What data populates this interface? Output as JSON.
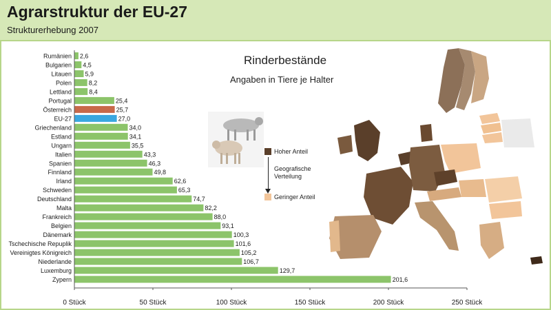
{
  "header": {
    "title": "Agrarstruktur der EU-27",
    "subtitle": "Strukturerhebung 2007"
  },
  "chart_data": {
    "type": "bar",
    "orientation": "horizontal",
    "title": "Rinderbestände",
    "subtitle": "Angaben in Tiere je Halter",
    "categories": [
      "Rumänien",
      "Bulgarien",
      "Litauen",
      "Polen",
      "Lettland",
      "Portugal",
      "Österreich",
      "EU-27",
      "Griechenland",
      "Estland",
      "Ungarn",
      "Italien",
      "Spanien",
      "Finnland",
      "Irland",
      "Schweden",
      "Deutschland",
      "Malta",
      "Frankreich",
      "Belgien",
      "Dänemark",
      "Tschechische Repuplik",
      "Vereinigtes Königreich",
      "Niederlande",
      "Luxemburg",
      "Zypern"
    ],
    "values": [
      2.6,
      4.5,
      5.9,
      8.2,
      8.4,
      25.4,
      25.7,
      27.0,
      34.0,
      34.1,
      35.5,
      43.3,
      46.3,
      49.8,
      62.6,
      65.3,
      74.7,
      82.2,
      88.0,
      93.1,
      100.3,
      101.6,
      105.2,
      106.7,
      129.7,
      201.6
    ],
    "value_labels": [
      "2,6",
      "4,5",
      "5,9",
      "8,2",
      "8,4",
      "25,4",
      "25,7",
      "27,0",
      "34,0",
      "34,1",
      "35,5",
      "43,3",
      "46,3",
      "49,8",
      "62,6",
      "65,3",
      "74,7",
      "82,2",
      "88,0",
      "93,1",
      "100,3",
      "101,6",
      "105,2",
      "106,7",
      "129,7",
      "201,6"
    ],
    "highlight": {
      "Österreich": "#c8694a",
      "EU-27": "#3aa7e0"
    },
    "bar_color": "#8cc46a",
    "xlim": [
      0,
      250
    ],
    "xticks": [
      0,
      50,
      100,
      150,
      200,
      250
    ],
    "xtick_labels": [
      "0 Stück",
      "50 Stück",
      "100 Stück",
      "150 Stück",
      "200 Stück",
      "250 Stück"
    ],
    "grid": false
  },
  "legend": {
    "high_label": "Hoher Anteil",
    "middle_label": "Geografische Verteilung",
    "low_label": "Geringer Anteil",
    "high_color": "#5a3f2a",
    "low_color": "#f2c59a"
  }
}
